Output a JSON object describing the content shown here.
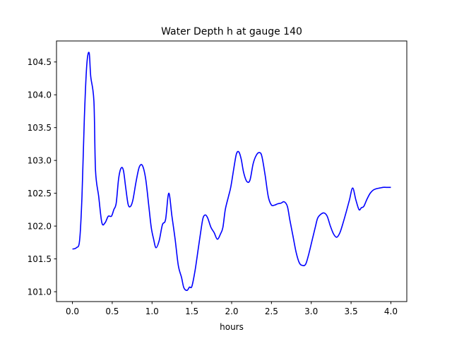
{
  "chart_data": {
    "type": "line",
    "title": "Water Depth h at gauge 140",
    "xlabel": "hours",
    "ylabel": "",
    "xlim": [
      -0.2,
      4.2
    ],
    "ylim": [
      100.85,
      104.82
    ],
    "grid": false,
    "x_ticks": [
      0.0,
      0.5,
      1.0,
      1.5,
      2.0,
      2.5,
      3.0,
      3.5,
      4.0
    ],
    "x_tick_labels": [
      "0.0",
      "0.5",
      "1.0",
      "1.5",
      "2.0",
      "2.5",
      "3.0",
      "3.5",
      "4.0"
    ],
    "y_ticks": [
      101.0,
      101.5,
      102.0,
      102.5,
      103.0,
      103.5,
      104.0,
      104.5
    ],
    "y_tick_labels": [
      "101.0",
      "101.5",
      "102.0",
      "102.5",
      "103.0",
      "103.5",
      "104.0",
      "104.5"
    ],
    "series": [
      {
        "color": "#0000ff",
        "x": [
          0.0,
          0.05,
          0.09,
          0.12,
          0.15,
          0.18,
          0.21,
          0.23,
          0.27,
          0.29,
          0.33,
          0.37,
          0.41,
          0.45,
          0.49,
          0.52,
          0.55,
          0.58,
          0.61,
          0.64,
          0.67,
          0.7,
          0.73,
          0.76,
          0.8,
          0.84,
          0.88,
          0.92,
          0.96,
          0.99,
          1.02,
          1.05,
          1.09,
          1.13,
          1.17,
          1.21,
          1.25,
          1.29,
          1.33,
          1.37,
          1.4,
          1.44,
          1.47,
          1.5,
          1.54,
          1.58,
          1.61,
          1.64,
          1.67,
          1.7,
          1.74,
          1.78,
          1.82,
          1.86,
          1.89,
          1.92,
          1.96,
          1.99,
          2.03,
          2.06,
          2.09,
          2.12,
          2.15,
          2.19,
          2.23,
          2.27,
          2.31,
          2.35,
          2.38,
          2.42,
          2.46,
          2.5,
          2.54,
          2.58,
          2.62,
          2.66,
          2.7,
          2.73,
          2.77,
          2.81,
          2.85,
          2.89,
          2.93,
          2.97,
          3.01,
          3.05,
          3.08,
          3.12,
          3.16,
          3.2,
          3.24,
          3.28,
          3.32,
          3.36,
          3.4,
          3.44,
          3.48,
          3.52,
          3.56,
          3.6,
          3.63,
          3.66,
          3.7,
          3.74,
          3.78,
          3.82,
          3.86,
          3.9,
          3.94,
          3.98,
          4.0
        ],
        "y": [
          101.65,
          101.67,
          101.78,
          102.45,
          103.65,
          104.45,
          104.64,
          104.28,
          103.9,
          102.85,
          102.45,
          102.05,
          102.05,
          102.15,
          102.15,
          102.25,
          102.35,
          102.72,
          102.88,
          102.85,
          102.58,
          102.33,
          102.3,
          102.4,
          102.68,
          102.9,
          102.92,
          102.72,
          102.3,
          101.98,
          101.8,
          101.67,
          101.78,
          102.02,
          102.1,
          102.5,
          102.15,
          101.8,
          101.4,
          101.22,
          101.06,
          101.02,
          101.07,
          101.08,
          101.32,
          101.65,
          101.9,
          102.12,
          102.17,
          102.12,
          101.98,
          101.9,
          101.8,
          101.88,
          101.98,
          102.25,
          102.45,
          102.6,
          102.9,
          103.1,
          103.13,
          103.02,
          102.82,
          102.68,
          102.7,
          102.95,
          103.08,
          103.12,
          103.06,
          102.78,
          102.45,
          102.32,
          102.32,
          102.34,
          102.35,
          102.37,
          102.3,
          102.1,
          101.85,
          101.6,
          101.44,
          101.4,
          101.42,
          101.58,
          101.78,
          101.98,
          102.12,
          102.18,
          102.2,
          102.15,
          102.0,
          101.88,
          101.83,
          101.9,
          102.05,
          102.22,
          102.4,
          102.58,
          102.4,
          102.25,
          102.28,
          102.3,
          102.41,
          102.5,
          102.55,
          102.57,
          102.58,
          102.59,
          102.59,
          102.59,
          102.59
        ]
      }
    ]
  },
  "colors": {
    "line": "#0000ff",
    "axes": "#000000",
    "background": "#ffffff"
  }
}
